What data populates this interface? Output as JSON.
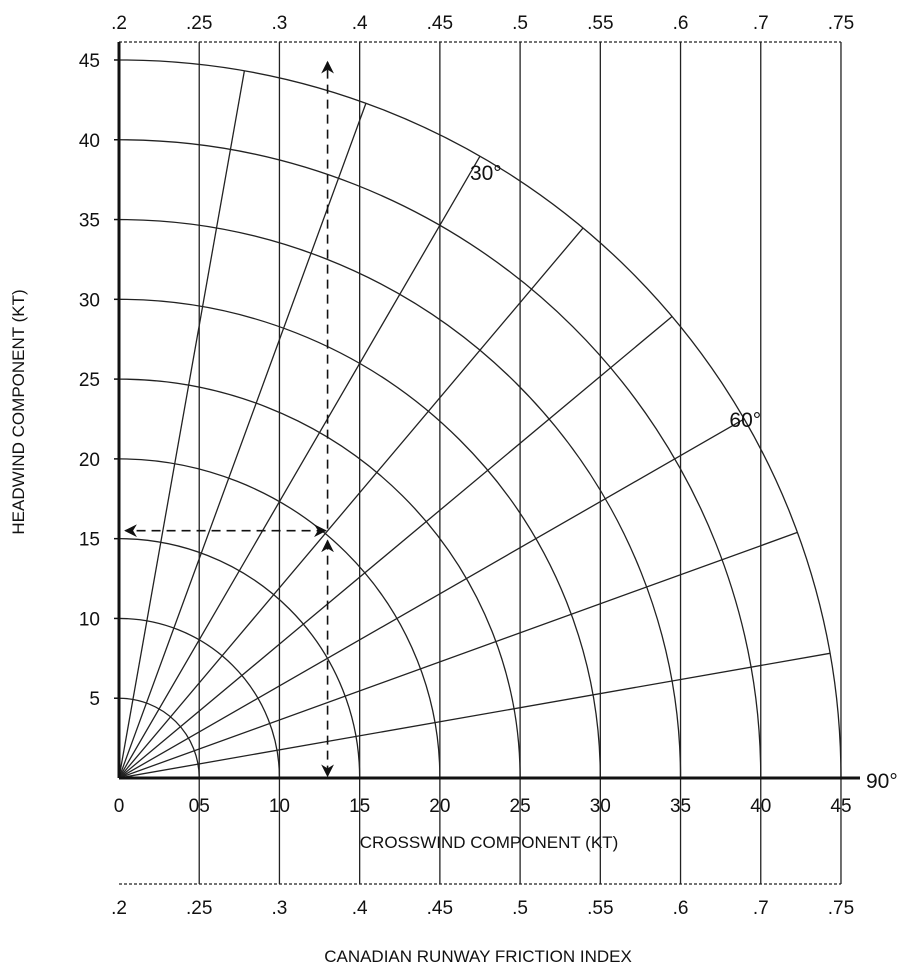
{
  "chart_data": {
    "type": "polar-nomogram",
    "xlabel": "CROSSWIND COMPONENT (KT)",
    "ylabel": "HEADWIND COMPONENT (KT)",
    "friction_label": "CANADIAN RUNWAY FRICTION INDEX",
    "xlim": [
      0,
      45
    ],
    "ylim": [
      0,
      45
    ],
    "x_ticks": [
      0,
      5,
      10,
      15,
      20,
      25,
      30,
      35,
      40,
      45
    ],
    "x_tick_labels": [
      "0",
      "05",
      "10",
      "15",
      "20",
      "25",
      "30",
      "35",
      "40",
      "45"
    ],
    "y_ticks": [
      5,
      10,
      15,
      20,
      25,
      30,
      35,
      40,
      45
    ],
    "y_tick_labels": [
      "5",
      "10",
      "15",
      "20",
      "25",
      "30",
      "35",
      "40",
      "45"
    ],
    "friction_index": [
      {
        "label": ".2",
        "crosswind": 0
      },
      {
        "label": ".25",
        "crosswind": 5
      },
      {
        "label": ".3",
        "crosswind": 10
      },
      {
        "label": ".4",
        "crosswind": 15
      },
      {
        "label": ".45",
        "crosswind": 20
      },
      {
        "label": ".5",
        "crosswind": 25
      },
      {
        "label": ".55",
        "crosswind": 30
      },
      {
        "label": ".6",
        "crosswind": 35
      },
      {
        "label": ".7",
        "crosswind": 40
      },
      {
        "label": ".75",
        "crosswind": 45
      }
    ],
    "wind_speed_arcs": [
      5,
      10,
      15,
      20,
      25,
      30,
      35,
      40,
      45
    ],
    "wind_angle_rays_deg": [
      10,
      20,
      30,
      40,
      50,
      60,
      70,
      80
    ],
    "angle_labels": [
      {
        "text": "30°",
        "angle": 30
      },
      {
        "text": "60°",
        "angle": 60
      },
      {
        "text": "90°",
        "angle": 90
      }
    ],
    "example": {
      "crosswind": 13,
      "headwind": 15.5
    },
    "grid": true
  }
}
